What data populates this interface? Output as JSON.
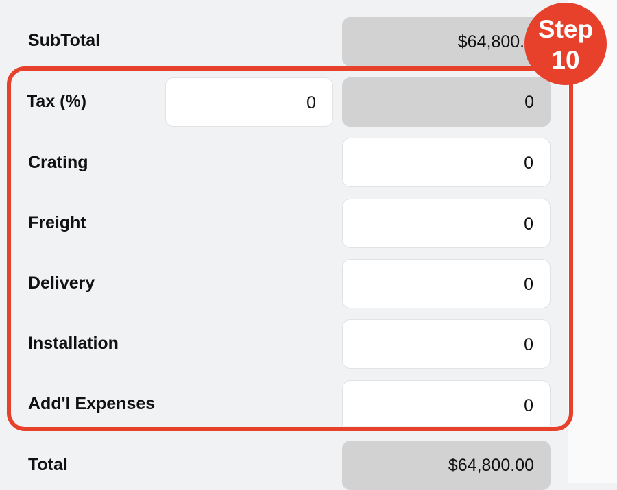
{
  "rows": {
    "subtotal": {
      "label": "SubTotal",
      "value": "$64,800.0"
    },
    "tax": {
      "label": "Tax (%)",
      "input_value": "0",
      "value": "0"
    },
    "crating": {
      "label": "Crating",
      "value": "0"
    },
    "freight": {
      "label": "Freight",
      "value": "0"
    },
    "delivery": {
      "label": "Delivery",
      "value": "0"
    },
    "installation": {
      "label": "Installation",
      "value": "0"
    },
    "addl_expenses": {
      "label": "Add'l Expenses",
      "value": "0"
    },
    "total": {
      "label": "Total",
      "value": "$64,800.00"
    }
  },
  "step_badge": {
    "line1": "Step",
    "line2": "10"
  },
  "colors": {
    "highlight": "#e8412b",
    "background": "#f1f2f4",
    "readonly_field": "#d2d2d2",
    "editable_field": "#ffffff"
  }
}
